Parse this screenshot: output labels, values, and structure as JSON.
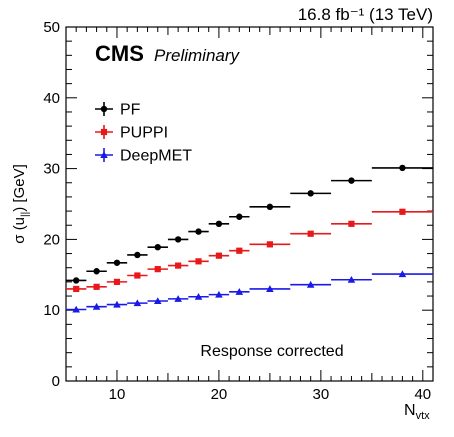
{
  "chart_data": {
    "type": "scatter",
    "lumi_label": "16.8 fb⁻¹ (13 TeV)",
    "experiment": "CMS",
    "status": "Preliminary",
    "ylabel_main": "σ (u",
    "ylabel_sub": "||",
    "ylabel_end": ") [GeV]",
    "xlabel_main": "N",
    "xlabel_sub": "vtx",
    "annotation": "Response corrected",
    "xlim": [
      5,
      41
    ],
    "ylim": [
      0,
      50
    ],
    "xticks": [
      10,
      20,
      30,
      40
    ],
    "yticks": [
      0,
      10,
      20,
      30,
      40,
      50
    ],
    "legend_position": "upper-left",
    "series": [
      {
        "name": "PF",
        "color": "#000000",
        "marker": "circle",
        "points": [
          {
            "x": 6,
            "xerr": 1,
            "y": 14.2
          },
          {
            "x": 8,
            "xerr": 1,
            "y": 15.5
          },
          {
            "x": 10,
            "xerr": 1,
            "y": 16.7
          },
          {
            "x": 12,
            "xerr": 1,
            "y": 17.8
          },
          {
            "x": 14,
            "xerr": 1,
            "y": 18.9
          },
          {
            "x": 16,
            "xerr": 1,
            "y": 20.0
          },
          {
            "x": 18,
            "xerr": 1,
            "y": 21.1
          },
          {
            "x": 20,
            "xerr": 1,
            "y": 22.2
          },
          {
            "x": 22,
            "xerr": 1,
            "y": 23.2
          },
          {
            "x": 25,
            "xerr": 2,
            "y": 24.6
          },
          {
            "x": 29,
            "xerr": 2,
            "y": 26.5
          },
          {
            "x": 33,
            "xerr": 2,
            "y": 28.3
          },
          {
            "x": 38,
            "xerr": 3,
            "y": 30.1
          }
        ]
      },
      {
        "name": "PUPPI",
        "color": "#e8191a",
        "marker": "square",
        "points": [
          {
            "x": 6,
            "xerr": 1,
            "y": 13.0
          },
          {
            "x": 8,
            "xerr": 1,
            "y": 13.3
          },
          {
            "x": 10,
            "xerr": 1,
            "y": 14.0
          },
          {
            "x": 12,
            "xerr": 1,
            "y": 14.9
          },
          {
            "x": 14,
            "xerr": 1,
            "y": 15.8
          },
          {
            "x": 16,
            "xerr": 1,
            "y": 16.3
          },
          {
            "x": 18,
            "xerr": 1,
            "y": 16.9
          },
          {
            "x": 20,
            "xerr": 1,
            "y": 17.7
          },
          {
            "x": 22,
            "xerr": 1,
            "y": 18.4
          },
          {
            "x": 25,
            "xerr": 2,
            "y": 19.3
          },
          {
            "x": 29,
            "xerr": 2,
            "y": 20.8
          },
          {
            "x": 33,
            "xerr": 2,
            "y": 22.2
          },
          {
            "x": 38,
            "xerr": 3,
            "y": 23.9
          }
        ]
      },
      {
        "name": "DeepMET",
        "color": "#1a1ae8",
        "marker": "triangle",
        "points": [
          {
            "x": 6,
            "xerr": 1,
            "y": 10.1
          },
          {
            "x": 8,
            "xerr": 1,
            "y": 10.5
          },
          {
            "x": 10,
            "xerr": 1,
            "y": 10.8
          },
          {
            "x": 12,
            "xerr": 1,
            "y": 11.0
          },
          {
            "x": 14,
            "xerr": 1,
            "y": 11.3
          },
          {
            "x": 16,
            "xerr": 1,
            "y": 11.6
          },
          {
            "x": 18,
            "xerr": 1,
            "y": 11.9
          },
          {
            "x": 20,
            "xerr": 1,
            "y": 12.2
          },
          {
            "x": 22,
            "xerr": 1,
            "y": 12.6
          },
          {
            "x": 25,
            "xerr": 2,
            "y": 13.0
          },
          {
            "x": 29,
            "xerr": 2,
            "y": 13.6
          },
          {
            "x": 33,
            "xerr": 2,
            "y": 14.3
          },
          {
            "x": 38,
            "xerr": 3,
            "y": 15.1
          }
        ]
      }
    ]
  }
}
